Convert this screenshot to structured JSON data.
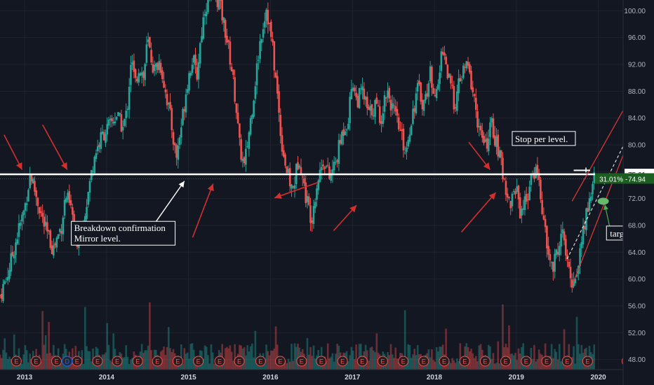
{
  "chart_data": {
    "type": "candlestick",
    "x_ticks": [
      "2013",
      "2014",
      "2015",
      "2016",
      "2017",
      "2018",
      "2019",
      "2020"
    ],
    "y_ticks": [
      "100.00",
      "96.00",
      "92.00",
      "88.00",
      "84.00",
      "80.00",
      "76.00",
      "72.00",
      "68.00",
      "64.00",
      "60.00",
      "56.00",
      "52.00",
      "48.00"
    ],
    "ylim": [
      46.5,
      101.6
    ],
    "xlim": [
      2012.7,
      2020.68
    ],
    "grid": true,
    "price_path": [
      [
        2012.7,
        57.5
      ],
      [
        2012.8,
        61
      ],
      [
        2012.9,
        66
      ],
      [
        2013.0,
        70.5
      ],
      [
        2013.07,
        75.8
      ],
      [
        2013.15,
        72
      ],
      [
        2013.25,
        67.5
      ],
      [
        2013.35,
        64.5
      ],
      [
        2013.45,
        68
      ],
      [
        2013.5,
        72.5
      ],
      [
        2013.58,
        70
      ],
      [
        2013.62,
        65
      ],
      [
        2013.7,
        68
      ],
      [
        2013.78,
        73
      ],
      [
        2013.85,
        78.5
      ],
      [
        2013.95,
        81.5
      ],
      [
        2014.05,
        83
      ],
      [
        2014.12,
        84.5
      ],
      [
        2014.2,
        82.5
      ],
      [
        2014.25,
        85
      ],
      [
        2014.3,
        93
      ],
      [
        2014.35,
        89
      ],
      [
        2014.4,
        92
      ],
      [
        2014.45,
        90
      ],
      [
        2014.5,
        95.5
      ],
      [
        2014.58,
        91
      ],
      [
        2014.65,
        92.5
      ],
      [
        2014.72,
        88
      ],
      [
        2014.78,
        84
      ],
      [
        2014.85,
        78
      ],
      [
        2014.92,
        83.5
      ],
      [
        2014.98,
        89
      ],
      [
        2015.05,
        93
      ],
      [
        2015.1,
        90
      ],
      [
        2015.15,
        96
      ],
      [
        2015.2,
        100.5
      ],
      [
        2015.3,
        103
      ],
      [
        2015.38,
        101
      ],
      [
        2015.45,
        97
      ],
      [
        2015.52,
        92
      ],
      [
        2015.58,
        86
      ],
      [
        2015.62,
        80
      ],
      [
        2015.68,
        76.5
      ],
      [
        2015.75,
        83
      ],
      [
        2015.82,
        90
      ],
      [
        2015.88,
        96
      ],
      [
        2015.95,
        100.5
      ],
      [
        2016.02,
        95
      ],
      [
        2016.08,
        88
      ],
      [
        2016.13,
        81
      ],
      [
        2016.2,
        76
      ],
      [
        2016.27,
        73
      ],
      [
        2016.35,
        78.5
      ],
      [
        2016.42,
        73
      ],
      [
        2016.5,
        69
      ],
      [
        2016.57,
        74.5
      ],
      [
        2016.65,
        78
      ],
      [
        2016.72,
        75
      ],
      [
        2016.8,
        77.5
      ],
      [
        2016.88,
        82
      ],
      [
        2016.95,
        84
      ],
      [
        2017.0,
        90
      ],
      [
        2017.05,
        86.5
      ],
      [
        2017.12,
        88
      ],
      [
        2017.2,
        84.5
      ],
      [
        2017.28,
        86
      ],
      [
        2017.35,
        84
      ],
      [
        2017.42,
        88.5
      ],
      [
        2017.5,
        85
      ],
      [
        2017.58,
        82
      ],
      [
        2017.65,
        79
      ],
      [
        2017.72,
        84
      ],
      [
        2017.8,
        88.5
      ],
      [
        2017.87,
        86
      ],
      [
        2017.95,
        90.5
      ],
      [
        2018.03,
        87
      ],
      [
        2018.1,
        95
      ],
      [
        2018.17,
        90
      ],
      [
        2018.25,
        86
      ],
      [
        2018.32,
        90
      ],
      [
        2018.4,
        92
      ],
      [
        2018.47,
        88
      ],
      [
        2018.55,
        82
      ],
      [
        2018.62,
        79.5
      ],
      [
        2018.7,
        83
      ],
      [
        2018.78,
        79
      ],
      [
        2018.85,
        75
      ],
      [
        2018.92,
        71
      ],
      [
        2019.0,
        74
      ],
      [
        2019.05,
        70
      ],
      [
        2019.12,
        72
      ],
      [
        2019.18,
        74.5
      ],
      [
        2019.25,
        77
      ],
      [
        2019.32,
        70
      ],
      [
        2019.38,
        64
      ],
      [
        2019.45,
        61.5
      ],
      [
        2019.5,
        64.5
      ],
      [
        2019.57,
        67
      ],
      [
        2019.62,
        62
      ],
      [
        2019.68,
        59.5
      ],
      [
        2019.74,
        61
      ],
      [
        2019.8,
        66
      ],
      [
        2019.86,
        70
      ],
      [
        2019.92,
        73.5
      ],
      [
        2019.95,
        74.94
      ]
    ],
    "horizontal_level": 75.61,
    "current_price": 74.94,
    "current_change_label": "31.01%",
    "stop_level": 76.2,
    "target_level": 71.6,
    "channel": {
      "lower": [
        [
          2019.68,
          59.0
        ],
        [
          2020.32,
          79.0
        ]
      ],
      "upper": [
        [
          2019.68,
          71.6
        ],
        [
          2020.32,
          85.5
        ]
      ],
      "middle_dashed": [
        [
          2019.62,
          63.0
        ],
        [
          2020.32,
          80.2
        ]
      ]
    },
    "earnings_markers_x": [
      2012.9,
      2013.14,
      2013.39,
      2013.64,
      2013.89,
      2014.13,
      2014.38,
      2014.62,
      2014.87,
      2015.12,
      2015.38,
      2015.62,
      2015.88,
      2016.12,
      2016.38,
      2016.62,
      2016.88,
      2017.12,
      2017.37,
      2017.62,
      2017.87,
      2018.12,
      2018.37,
      2018.62,
      2018.87,
      2019.12,
      2019.37,
      2019.62,
      2019.87,
      2020.35
    ],
    "dividend_marker_x": 2013.52,
    "current_label": "75.61",
    "current_change_value": "74.94",
    "annotations": {
      "breakdown": [
        "Breakdown confirmation",
        "Mirror level."
      ],
      "stop": "Stop per level.",
      "target": "target"
    },
    "colors": {
      "up": "#26a69a",
      "down": "#ef5350",
      "arrow": "#d32f2f",
      "level": "#ffffff",
      "target": "#4caf50",
      "background": "#131722"
    }
  }
}
